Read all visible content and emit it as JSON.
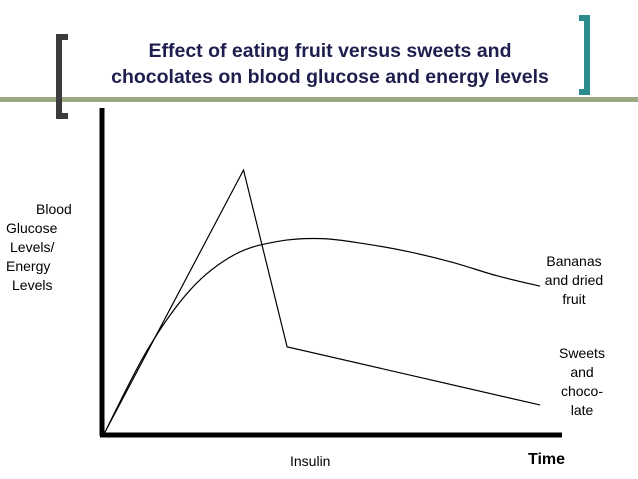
{
  "slide": {
    "title_line1": "Effect of eating fruit versus sweets and",
    "title_line2": "chocolates on blood glucose and energy levels",
    "colors": {
      "title": "#1f1f4f",
      "bracket_left": "#3c3c3c",
      "bracket_right": "#2e8b8b",
      "rule": "#9aa882",
      "curve": "#000000"
    }
  },
  "chart_data": {
    "type": "line",
    "title": "Effect of eating fruit versus sweets and chocolates on blood glucose and energy levels",
    "ylabel_lines": [
      "Blood",
      "Glucose",
      "Levels/",
      "Energy",
      "Levels"
    ],
    "xlabel": "Time",
    "x_annotation": "Insulin",
    "series": [
      {
        "name_lines": [
          "Bananas",
          "and dried",
          "fruit"
        ],
        "kind": "smooth",
        "x": [
          0,
          0.1,
          0.2,
          0.3,
          0.4,
          0.5,
          0.6,
          0.7,
          0.8,
          0.9,
          1.0
        ],
        "y": [
          0,
          0.32,
          0.55,
          0.68,
          0.73,
          0.74,
          0.72,
          0.69,
          0.65,
          0.6,
          0.56
        ]
      },
      {
        "name_lines": [
          "Sweets",
          "and",
          "choco-",
          "late"
        ],
        "kind": "polyline",
        "x": [
          0,
          0.32,
          0.42,
          1.0
        ],
        "y": [
          0,
          1.0,
          0.33,
          0.11
        ]
      }
    ]
  }
}
